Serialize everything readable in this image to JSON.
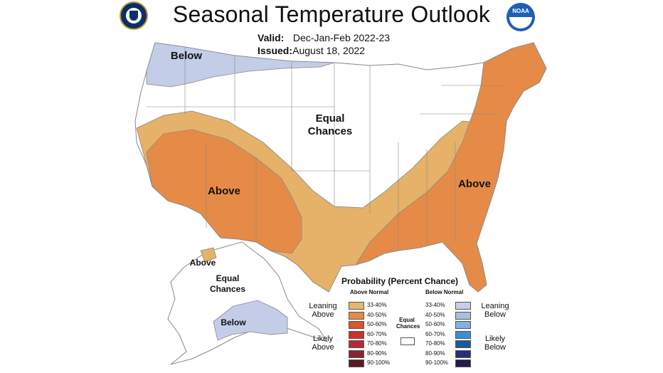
{
  "header": {
    "title": "Seasonal Temperature Outlook",
    "valid_label": "Valid:",
    "valid_value": "Dec-Jan-Feb 2022-23",
    "issued_label": "Issued:",
    "issued_value": "August 18, 2022"
  },
  "logos": {
    "noaa_text": "NOAA"
  },
  "map_labels": {
    "northwest_below": "Below",
    "central_equal": "Equal Chances",
    "southwest_above": "Above",
    "southeast_above": "Above",
    "alaska_above": "Above",
    "alaska_equal": "Equal Chances",
    "alaska_below": "Below"
  },
  "colors": {
    "leaning_above": "#e6b168",
    "likely_above_40_50": "#e58b47",
    "leaning_below": "#c4cde8",
    "land": "#ffffff",
    "border": "#888888"
  },
  "legend": {
    "title": "Probability (Percent Chance)",
    "above_header": "Above Normal",
    "below_header": "Below Normal",
    "equal_label": "Equal Chances",
    "leaning_above": "Leaning Above",
    "likely_above": "Likely Above",
    "leaning_below": "Leaning Below",
    "likely_below": "Likely Below",
    "above_bins": [
      {
        "label": "33-40%",
        "color": "#e9b46d"
      },
      {
        "label": "40-50%",
        "color": "#e38a45"
      },
      {
        "label": "50-60%",
        "color": "#d9542f"
      },
      {
        "label": "60-70%",
        "color": "#c8332d"
      },
      {
        "label": "70-80%",
        "color": "#b8283c"
      },
      {
        "label": "80-90%",
        "color": "#8a2230"
      },
      {
        "label": "90-100%",
        "color": "#5c1a20"
      }
    ],
    "below_bins": [
      {
        "label": "33-40%",
        "color": "#c6cfe9"
      },
      {
        "label": "40-50%",
        "color": "#a9bfe1"
      },
      {
        "label": "50-60%",
        "color": "#7fb2e0"
      },
      {
        "label": "60-70%",
        "color": "#3a8fd3"
      },
      {
        "label": "70-80%",
        "color": "#1c5b9a"
      },
      {
        "label": "80-90%",
        "color": "#2b2f78"
      },
      {
        "label": "90-100%",
        "color": "#231a4e"
      }
    ]
  }
}
